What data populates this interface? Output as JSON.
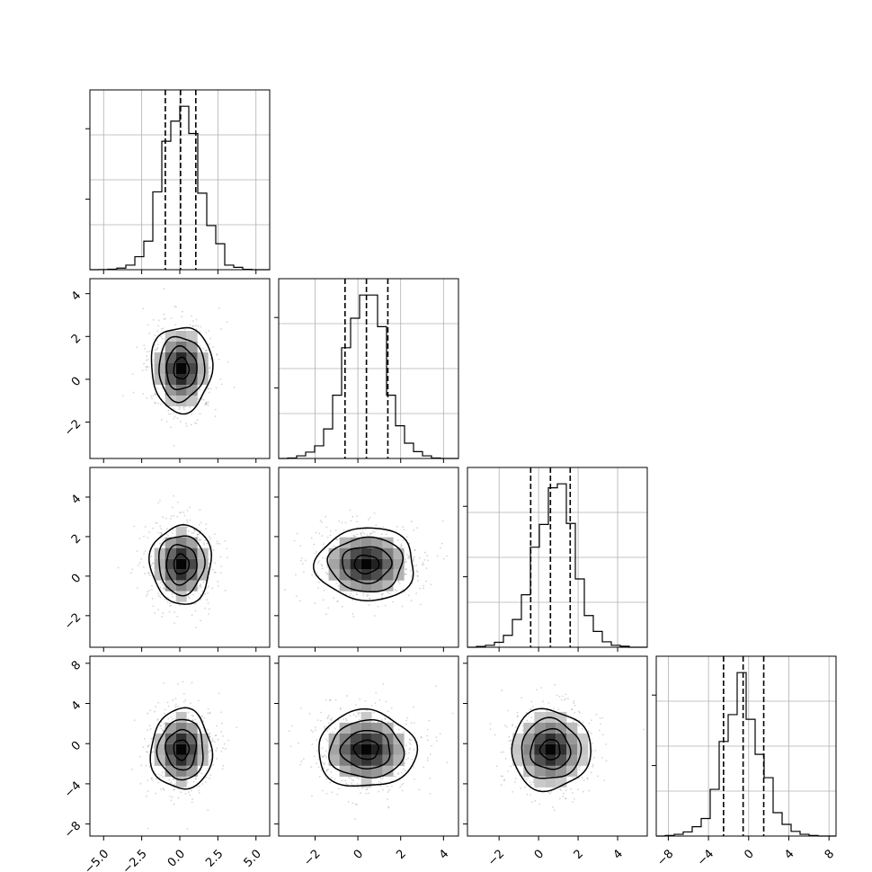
{
  "chart_data": {
    "type": "corner",
    "title": "",
    "params": [
      {
        "index": 0,
        "range": [
          -5.9,
          5.9
        ],
        "ticks": [
          -5.0,
          -2.5,
          0.0,
          2.5,
          5.0
        ],
        "tick_labels": [
          "−5.0",
          "−2.5",
          "0.0",
          "2.5",
          "5.0"
        ],
        "quantiles": [
          -0.95,
          0.05,
          1.05
        ],
        "hist_edges": [
          -5.9,
          -5.31,
          -4.72,
          -4.13,
          -3.54,
          -2.95,
          -2.36,
          -1.77,
          -1.18,
          -0.59,
          0.0,
          0.59,
          1.18,
          1.77,
          2.36,
          2.95,
          3.54,
          4.13,
          4.72,
          5.31,
          5.9
        ],
        "hist_counts": [
          0,
          1,
          4,
          12,
          35,
          100,
          220,
          600,
          990,
          1145,
          1260,
          1050,
          590,
          340,
          200,
          35,
          18,
          3,
          0,
          0
        ]
      },
      {
        "index": 1,
        "range": [
          -3.7,
          4.7
        ],
        "ticks": [
          -2,
          0,
          2,
          4
        ],
        "tick_labels": [
          "−2",
          "0",
          "2",
          "4"
        ],
        "quantiles": [
          -0.6,
          0.4,
          1.4
        ],
        "hist_edges": [
          -3.7,
          -3.28,
          -2.86,
          -2.44,
          -2.02,
          -1.6,
          -1.18,
          -0.76,
          -0.34,
          0.08,
          0.5,
          0.92,
          1.34,
          1.76,
          2.18,
          2.6,
          3.02,
          3.44,
          3.86,
          4.28,
          4.7
        ],
        "hist_counts": [
          0,
          5,
          25,
          60,
          120,
          280,
          600,
          1050,
          1330,
          1550,
          1550,
          1250,
          600,
          310,
          145,
          65,
          25,
          5,
          0,
          0
        ]
      },
      {
        "index": 2,
        "range": [
          -3.6,
          5.5
        ],
        "ticks": [
          -2,
          0,
          2,
          4
        ],
        "tick_labels": [
          "−2",
          "0",
          "2",
          "4"
        ],
        "quantiles": [
          -0.4,
          0.6,
          1.6
        ],
        "hist_edges": [
          -3.6,
          -3.145,
          -2.69,
          -2.235,
          -1.78,
          -1.325,
          -0.87,
          -0.415,
          0.04,
          0.495,
          0.95,
          1.405,
          1.86,
          2.315,
          2.77,
          3.225,
          3.68,
          4.135,
          4.59,
          5.045,
          5.5
        ],
        "hist_counts": [
          0,
          8,
          20,
          50,
          120,
          280,
          530,
          1010,
          1240,
          1610,
          1650,
          1250,
          690,
          320,
          160,
          55,
          20,
          10,
          0,
          0
        ]
      },
      {
        "index": 3,
        "range": [
          -9.2,
          8.7
        ],
        "ticks": [
          -8,
          -4,
          0,
          4,
          8
        ],
        "tick_labels": [
          "−8",
          "−4",
          "0",
          "4",
          "8"
        ],
        "quantiles": [
          -2.5,
          -0.55,
          1.5
        ],
        "hist_edges": [
          -9.2,
          -8.305,
          -7.41,
          -6.515,
          -5.62,
          -4.725,
          -3.83,
          -2.935,
          -2.04,
          -1.145,
          -0.25,
          0.645,
          1.54,
          2.435,
          3.33,
          4.225,
          5.12,
          6.015,
          6.91,
          7.805,
          8.7
        ],
        "hist_counts": [
          0,
          5,
          15,
          35,
          80,
          150,
          400,
          810,
          1040,
          1400,
          1000,
          700,
          500,
          200,
          100,
          40,
          15,
          5,
          0,
          0
        ]
      }
    ],
    "pairs": [
      {
        "x": 0,
        "y": 1,
        "center": [
          0.1,
          0.5
        ],
        "sigma": [
          1.0,
          1.0
        ],
        "contour_levels_sigma": [
          0.5,
          1.0,
          1.5,
          2.0
        ]
      },
      {
        "x": 0,
        "y": 2,
        "center": [
          0.1,
          0.6
        ],
        "sigma": [
          1.0,
          1.0
        ],
        "contour_levels_sigma": [
          0.5,
          1.0,
          1.5,
          2.0
        ]
      },
      {
        "x": 1,
        "y": 2,
        "center": [
          0.4,
          0.6
        ],
        "sigma": [
          1.15,
          0.92
        ],
        "contour_levels_sigma": [
          0.5,
          1.0,
          1.5,
          2.0
        ]
      },
      {
        "x": 0,
        "y": 3,
        "center": [
          0.1,
          -0.6
        ],
        "sigma": [
          1.0,
          2.0
        ],
        "contour_levels_sigma": [
          0.5,
          1.0,
          1.5,
          2.0
        ]
      },
      {
        "x": 1,
        "y": 3,
        "center": [
          0.4,
          -0.6
        ],
        "sigma": [
          1.15,
          1.9
        ],
        "contour_levels_sigma": [
          0.5,
          1.0,
          1.5,
          2.0
        ]
      },
      {
        "x": 2,
        "y": 3,
        "center": [
          0.6,
          -0.6
        ],
        "sigma": [
          1.0,
          2.0
        ],
        "contour_levels_sigma": [
          0.5,
          1.0,
          1.5,
          2.0
        ]
      }
    ],
    "grid": true,
    "colors": {
      "line": "#000000",
      "grid": "#b0b0b0",
      "points": "#888888"
    }
  }
}
